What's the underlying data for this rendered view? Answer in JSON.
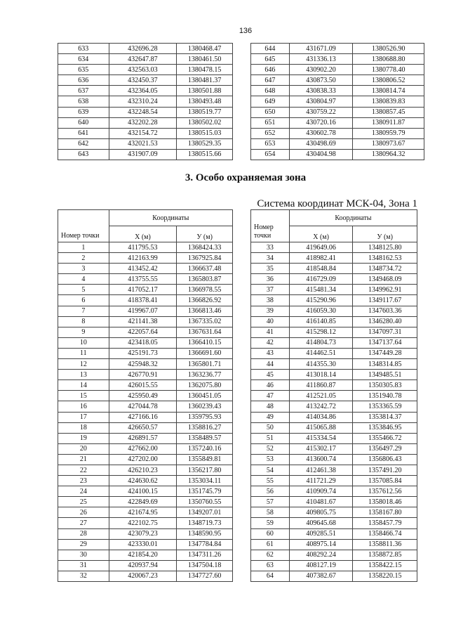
{
  "page_number": "136",
  "continued_table_left": [
    [
      "633",
      "432696.28",
      "1380468.47"
    ],
    [
      "634",
      "432647.87",
      "1380461.50"
    ],
    [
      "635",
      "432563.03",
      "1380478.15"
    ],
    [
      "636",
      "432450.37",
      "1380481.37"
    ],
    [
      "637",
      "432364.05",
      "1380501.88"
    ],
    [
      "638",
      "432310.24",
      "1380493.48"
    ],
    [
      "639",
      "432248.54",
      "1380519.77"
    ],
    [
      "640",
      "432202.28",
      "1380502.02"
    ],
    [
      "641",
      "432154.72",
      "1380515.03"
    ],
    [
      "642",
      "432021.53",
      "1380529.35"
    ],
    [
      "643",
      "431907.09",
      "1380515.66"
    ]
  ],
  "continued_table_right": [
    [
      "644",
      "431671.09",
      "1380526.90"
    ],
    [
      "645",
      "431336.13",
      "1380688.80"
    ],
    [
      "646",
      "430902.20",
      "1380778.40"
    ],
    [
      "647",
      "430873.50",
      "1380806.52"
    ],
    [
      "648",
      "430838.33",
      "1380814.74"
    ],
    [
      "649",
      "430804.97",
      "1380839.83"
    ],
    [
      "650",
      "430759.22",
      "1380857.45"
    ],
    [
      "651",
      "430720.16",
      "1380911.87"
    ],
    [
      "652",
      "430602.78",
      "1380959.79"
    ],
    [
      "653",
      "430498.69",
      "1380973.67"
    ],
    [
      "654",
      "430404.98",
      "1380964.32"
    ]
  ],
  "section_heading": "3. Особо охраняемая зона",
  "coordinate_system": "Система координат МСК-04, Зона 1",
  "headers": {
    "point_number": "Номер точки",
    "coordinates": "Координаты",
    "x": "X (м)",
    "y": "У (м)"
  },
  "zone_table_left": [
    [
      "1",
      "411795.53",
      "1368424.33"
    ],
    [
      "2",
      "412163.99",
      "1367925.84"
    ],
    [
      "3",
      "413452.42",
      "1366637.48"
    ],
    [
      "4",
      "413755.55",
      "1365803.87"
    ],
    [
      "5",
      "417052.17",
      "1366978.55"
    ],
    [
      "6",
      "418378.41",
      "1366826.92"
    ],
    [
      "7",
      "419967.07",
      "1366813.46"
    ],
    [
      "8",
      "421141.38",
      "1367335.02"
    ],
    [
      "9",
      "422057.64",
      "1367631.64"
    ],
    [
      "10",
      "423418.05",
      "1366410.15"
    ],
    [
      "11",
      "425191.73",
      "1366691.60"
    ],
    [
      "12",
      "425948.32",
      "1365801.71"
    ],
    [
      "13",
      "426770.91",
      "1363236.77"
    ],
    [
      "14",
      "426015.55",
      "1362075.80"
    ],
    [
      "15",
      "425950.49",
      "1360451.05"
    ],
    [
      "16",
      "427044.78",
      "1360239.43"
    ],
    [
      "17",
      "427166.16",
      "1359795.93"
    ],
    [
      "18",
      "426650.57",
      "1358816.27"
    ],
    [
      "19",
      "426891.57",
      "1358489.57"
    ],
    [
      "20",
      "427662.00",
      "1357240.16"
    ],
    [
      "21",
      "427202.00",
      "1355849.81"
    ],
    [
      "22",
      "426210.23",
      "1356217.80"
    ],
    [
      "23",
      "424630.62",
      "1353034.11"
    ],
    [
      "24",
      "424100.15",
      "1351745.79"
    ],
    [
      "25",
      "422849.69",
      "1350760.55"
    ],
    [
      "26",
      "421674.95",
      "1349207.01"
    ],
    [
      "27",
      "422102.75",
      "1348719.73"
    ],
    [
      "28",
      "423079.23",
      "1348590.95"
    ],
    [
      "29",
      "423330.01",
      "1347784.84"
    ],
    [
      "30",
      "421854.20",
      "1347311.26"
    ],
    [
      "31",
      "420937.94",
      "1347504.18"
    ],
    [
      "32",
      "420067.23",
      "1347727.60"
    ]
  ],
  "zone_table_right": [
    [
      "33",
      "419649.06",
      "1348125.80"
    ],
    [
      "34",
      "418982.41",
      "1348162.53"
    ],
    [
      "35",
      "418548.84",
      "1348734.72"
    ],
    [
      "36",
      "416729.09",
      "1349468.09"
    ],
    [
      "37",
      "415481.34",
      "1349962.91"
    ],
    [
      "38",
      "415290.96",
      "1349117.67"
    ],
    [
      "39",
      "416059.30",
      "1347603.36"
    ],
    [
      "40",
      "416140.85",
      "1346280.40"
    ],
    [
      "41",
      "415298.12",
      "1347097.31"
    ],
    [
      "42",
      "414804.73",
      "1347137.64"
    ],
    [
      "43",
      "414462.51",
      "1347449.28"
    ],
    [
      "44",
      "414355.30",
      "1348314.85"
    ],
    [
      "45",
      "413018.14",
      "1349485.51"
    ],
    [
      "46",
      "411860.87",
      "1350305.83"
    ],
    [
      "47",
      "412521.05",
      "1351940.78"
    ],
    [
      "48",
      "413242.72",
      "1353365.59"
    ],
    [
      "49",
      "414034.86",
      "1353814.37"
    ],
    [
      "50",
      "415065.88",
      "1353846.95"
    ],
    [
      "51",
      "415334.54",
      "1355466.72"
    ],
    [
      "52",
      "415302.17",
      "1356497.29"
    ],
    [
      "53",
      "413600.74",
      "1356806.43"
    ],
    [
      "54",
      "412461.38",
      "1357491.20"
    ],
    [
      "55",
      "411721.29",
      "1357085.84"
    ],
    [
      "56",
      "410909.74",
      "1357612.56"
    ],
    [
      "57",
      "410481.67",
      "1358018.46"
    ],
    [
      "58",
      "409805.75",
      "1358167.80"
    ],
    [
      "59",
      "409645.68",
      "1358457.79"
    ],
    [
      "60",
      "409285.51",
      "1358466.74"
    ],
    [
      "61",
      "408975.14",
      "1358811.36"
    ],
    [
      "62",
      "408292.24",
      "1358872.85"
    ],
    [
      "63",
      "408127.19",
      "1358422.15"
    ],
    [
      "64",
      "407382.67",
      "1358220.15"
    ]
  ]
}
